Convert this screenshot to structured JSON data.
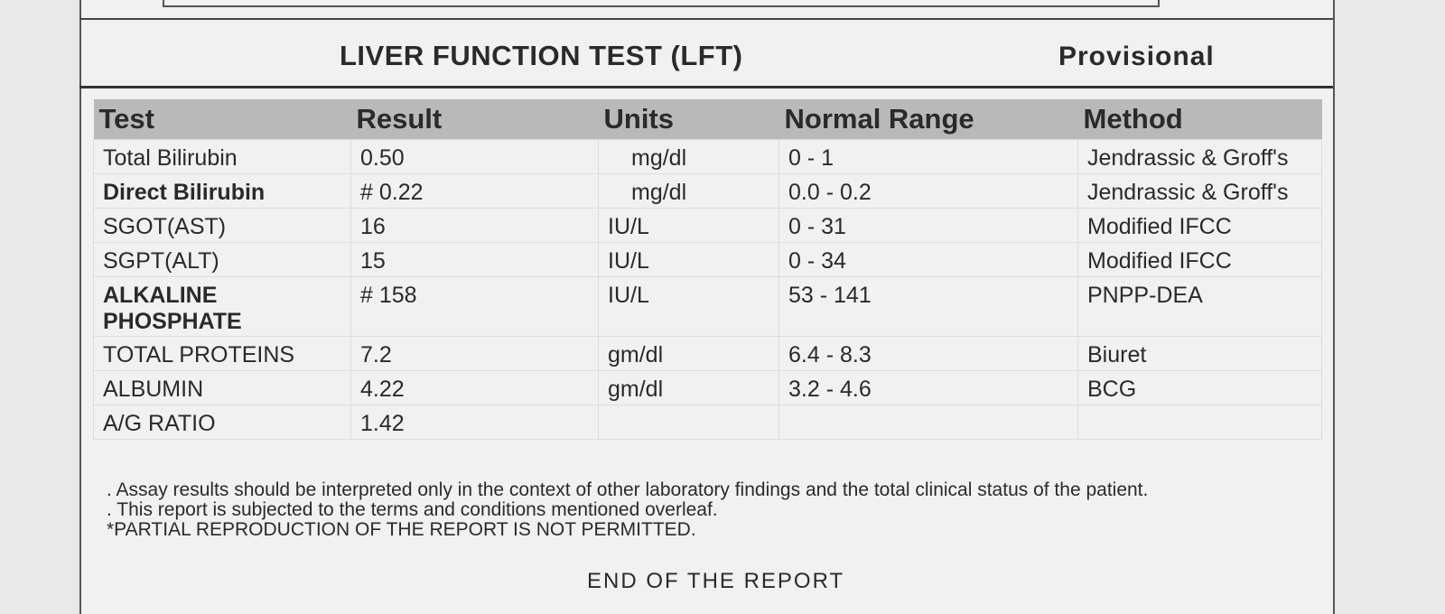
{
  "header": {
    "title": "LIVER FUNCTION TEST (LFT)",
    "status": "Provisional"
  },
  "table": {
    "columns": [
      "Test",
      "Result",
      "Units",
      "Normal Range",
      "Method"
    ],
    "rows": [
      [
        "Total Bilirubin",
        "0.50",
        "mg/dl",
        "0 - 1",
        "Jendrassic & Groff's"
      ],
      [
        "Direct Bilirubin",
        "# 0.22",
        "mg/dl",
        "0.0 - 0.2",
        "Jendrassic & Groff's"
      ],
      [
        "SGOT(AST)",
        "16",
        "IU/L",
        "0 - 31",
        "Modified IFCC"
      ],
      [
        "SGPT(ALT)",
        "15",
        "IU/L",
        "0 - 34",
        "Modified IFCC"
      ],
      [
        "ALKALINE PHOSPHATE",
        "# 158",
        "IU/L",
        "53 - 141",
        "PNPP-DEA"
      ],
      [
        "TOTAL PROTEINS",
        "7.2",
        "gm/dl",
        "6.4 - 8.3",
        "Biuret"
      ],
      [
        "ALBUMIN",
        "4.22",
        "gm/dl",
        "3.2 - 4.6",
        "BCG"
      ],
      [
        "A/G RATIO",
        "1.42"
      ]
    ]
  },
  "notes": [
    ". Assay results should be interpreted only in the context of other laboratory findings and the total clinical status of the patient.",
    ". This report is subjected to the terms and conditions mentioned overleaf.",
    "*PARTIAL REPRODUCTION OF THE REPORT IS NOT PERMITTED."
  ],
  "footer": "END OF THE REPORT"
}
